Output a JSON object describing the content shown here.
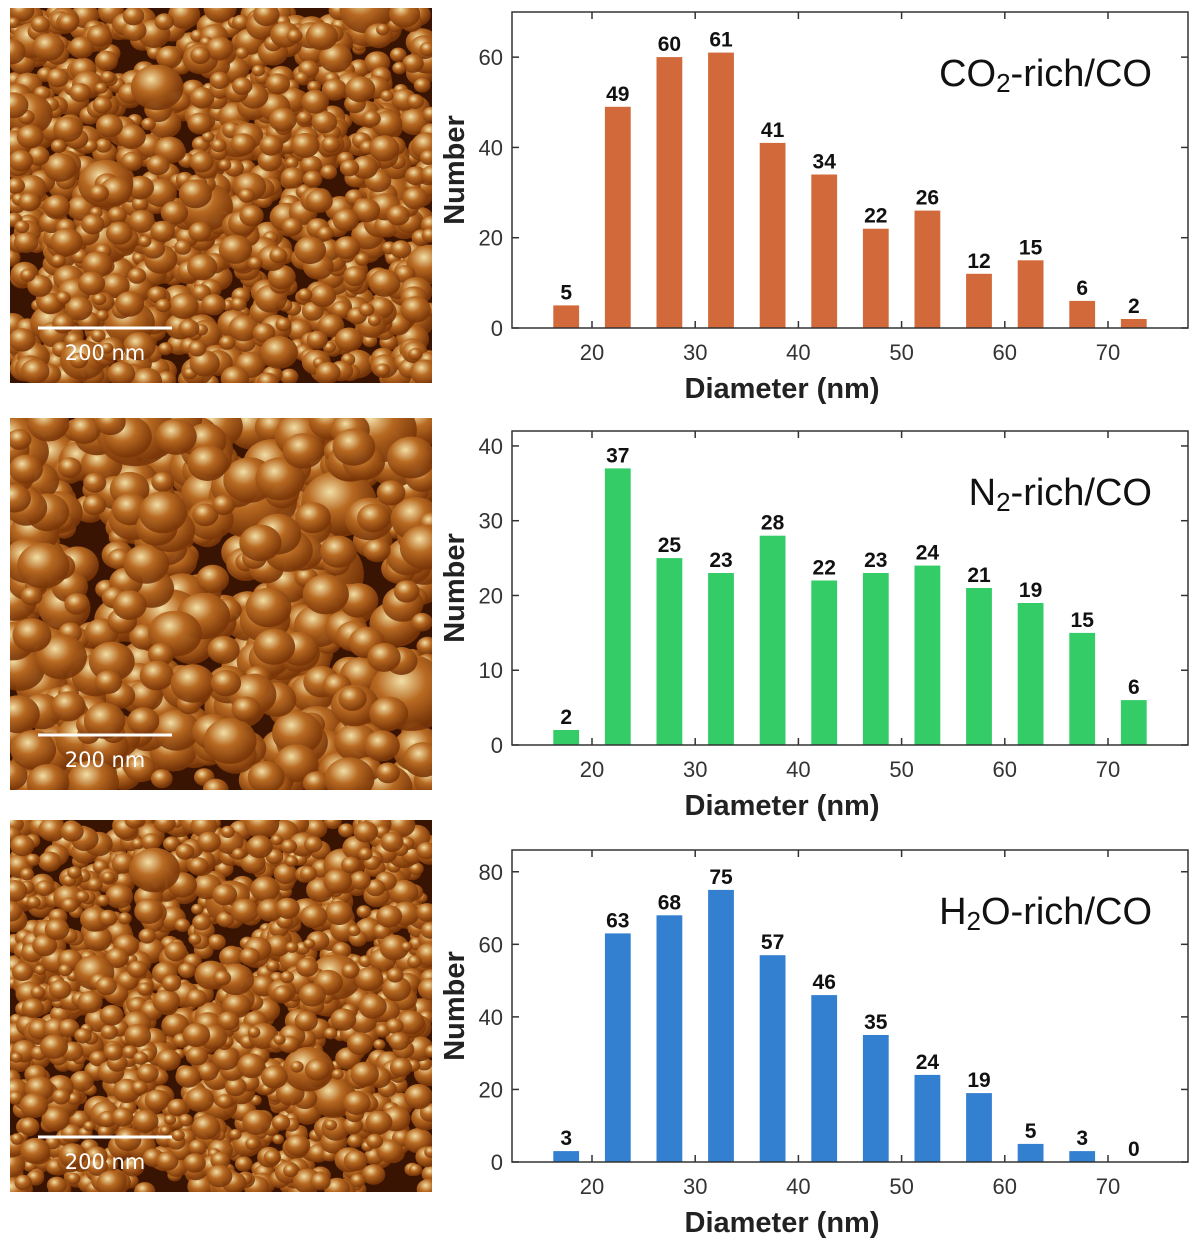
{
  "afm_images": [
    {
      "scale_label": "200 nm",
      "palette": [
        "#3a1403",
        "#7a3608",
        "#b86a22",
        "#f2dfa6"
      ]
    },
    {
      "scale_label": "200 nm",
      "palette": [
        "#3a1403",
        "#7a3608",
        "#b86a22",
        "#f2dfa6"
      ]
    },
    {
      "scale_label": "200 nm",
      "palette": [
        "#3a1403",
        "#7a3608",
        "#b86a22",
        "#f2dfa6"
      ]
    }
  ],
  "chart_data": [
    {
      "type": "bar",
      "title": "CO2-rich/CO",
      "title_parts": {
        "pre": "CO",
        "sub": "2",
        "post": "-rich/CO"
      },
      "xlabel": "Diameter (nm)",
      "ylabel": "Number",
      "x": [
        17.5,
        22.5,
        27.5,
        32.5,
        37.5,
        42.5,
        47.5,
        52.5,
        57.5,
        62.5,
        67.5,
        72.5
      ],
      "values": [
        5,
        49,
        60,
        61,
        41,
        34,
        22,
        26,
        12,
        15,
        6,
        2
      ],
      "xlim": [
        12,
        120
      ],
      "xticks": [
        20,
        30,
        40,
        50,
        60,
        70
      ],
      "ylim": [
        0,
        70
      ],
      "yticks": [
        0,
        20,
        40,
        60
      ],
      "bar_width": 2.5,
      "color": "#d2693a",
      "grid": false,
      "legend": "none"
    },
    {
      "type": "bar",
      "title": "N2-rich/CO",
      "title_parts": {
        "pre": "N",
        "sub": "2",
        "post": "-rich/CO"
      },
      "xlabel": "Diameter (nm)",
      "ylabel": "Number",
      "x": [
        17.5,
        22.5,
        27.5,
        32.5,
        37.5,
        42.5,
        47.5,
        52.5,
        57.5,
        62.5,
        67.5,
        72.5
      ],
      "values": [
        2,
        37,
        25,
        23,
        28,
        22,
        23,
        24,
        21,
        19,
        15,
        6
      ],
      "xlim": [
        12,
        120
      ],
      "xticks": [
        20,
        30,
        40,
        50,
        60,
        70
      ],
      "ylim": [
        0,
        42
      ],
      "yticks": [
        0,
        10,
        20,
        30,
        40
      ],
      "bar_width": 2.5,
      "color": "#33cc66",
      "grid": false,
      "legend": "none"
    },
    {
      "type": "bar",
      "title": "H2O-rich/CO",
      "title_parts": {
        "pre": "H",
        "sub": "2",
        "post": "O-rich/CO"
      },
      "xlabel": "Diameter (nm)",
      "ylabel": "Number",
      "x": [
        17.5,
        22.5,
        27.5,
        32.5,
        37.5,
        42.5,
        47.5,
        52.5,
        57.5,
        62.5,
        67.5,
        72.5
      ],
      "values": [
        3,
        63,
        68,
        75,
        57,
        46,
        35,
        24,
        19,
        5,
        3,
        0
      ],
      "xlim": [
        12,
        120
      ],
      "xticks": [
        20,
        30,
        40,
        50,
        60,
        70
      ],
      "ylim": [
        0,
        86
      ],
      "yticks": [
        0,
        20,
        40,
        60,
        80
      ],
      "bar_width": 2.5,
      "color": "#3380d0",
      "grid": false,
      "legend": "none"
    }
  ]
}
